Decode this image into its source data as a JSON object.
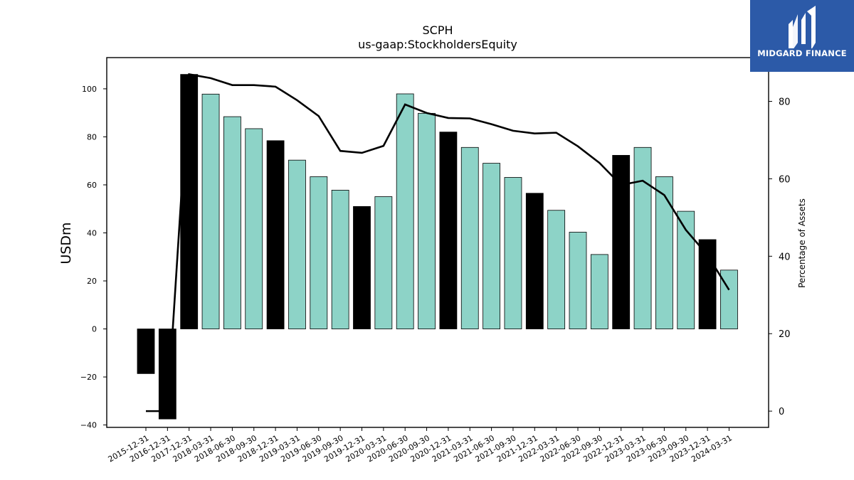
{
  "brand": {
    "name": "MIDGARD FINANCE",
    "color": "#2c5aa8"
  },
  "chart_data": {
    "type": "bar",
    "title": "SCPH",
    "subtitle": "us-gaap:StockholdersEquity",
    "ylabel": "USDm",
    "y2label": "Percentage of Assets",
    "ylim": [
      -41,
      113
    ],
    "y2lim": [
      -4.2,
      91.3
    ],
    "yticks": [
      -40,
      -20,
      0,
      20,
      40,
      60,
      80,
      100
    ],
    "y2ticks": [
      0,
      20,
      40,
      60,
      80
    ],
    "grid": false,
    "categories": [
      "2015-12-31",
      "2016-12-31",
      "2017-12-31",
      "2018-03-31",
      "2018-06-30",
      "2018-09-30",
      "2018-12-31",
      "2019-03-31",
      "2019-06-30",
      "2019-09-30",
      "2019-12-31",
      "2020-03-31",
      "2020-06-30",
      "2020-09-30",
      "2020-12-31",
      "2021-03-31",
      "2021-06-30",
      "2021-09-30",
      "2021-12-31",
      "2022-03-31",
      "2022-06-30",
      "2022-09-30",
      "2022-12-31",
      "2023-03-31",
      "2023-06-30",
      "2023-09-30",
      "2023-12-31",
      "2024-03-31"
    ],
    "series": [
      {
        "kind": "bar",
        "values": [
          -18.6,
          -37.5,
          106.0,
          97.8,
          88.4,
          83.4,
          78.4,
          70.3,
          63.4,
          57.8,
          51.0,
          55.1,
          97.9,
          89.8,
          82.0,
          75.6,
          69.0,
          63.1,
          56.5,
          49.4,
          40.3,
          31.0,
          72.3,
          75.6,
          63.4,
          49.0,
          37.2,
          24.5
        ],
        "fill_annual": "#000000",
        "fill_quarterly": "#8dd3c7",
        "annual_flags": [
          true,
          true,
          true,
          false,
          false,
          false,
          true,
          false,
          false,
          false,
          true,
          false,
          false,
          false,
          true,
          false,
          false,
          false,
          true,
          false,
          false,
          false,
          true,
          false,
          false,
          false,
          true,
          false
        ]
      },
      {
        "kind": "line",
        "axis": "right",
        "color": "#000000",
        "values": [
          0.0,
          0.0,
          87.0,
          86.0,
          84.2,
          84.2,
          83.8,
          80.3,
          76.2,
          67.2,
          66.7,
          68.5,
          79.2,
          77.0,
          75.7,
          75.6,
          74.1,
          72.4,
          71.7,
          71.9,
          68.4,
          64.1,
          58.4,
          59.5,
          55.8,
          46.8,
          40.3,
          31.3
        ]
      }
    ]
  }
}
